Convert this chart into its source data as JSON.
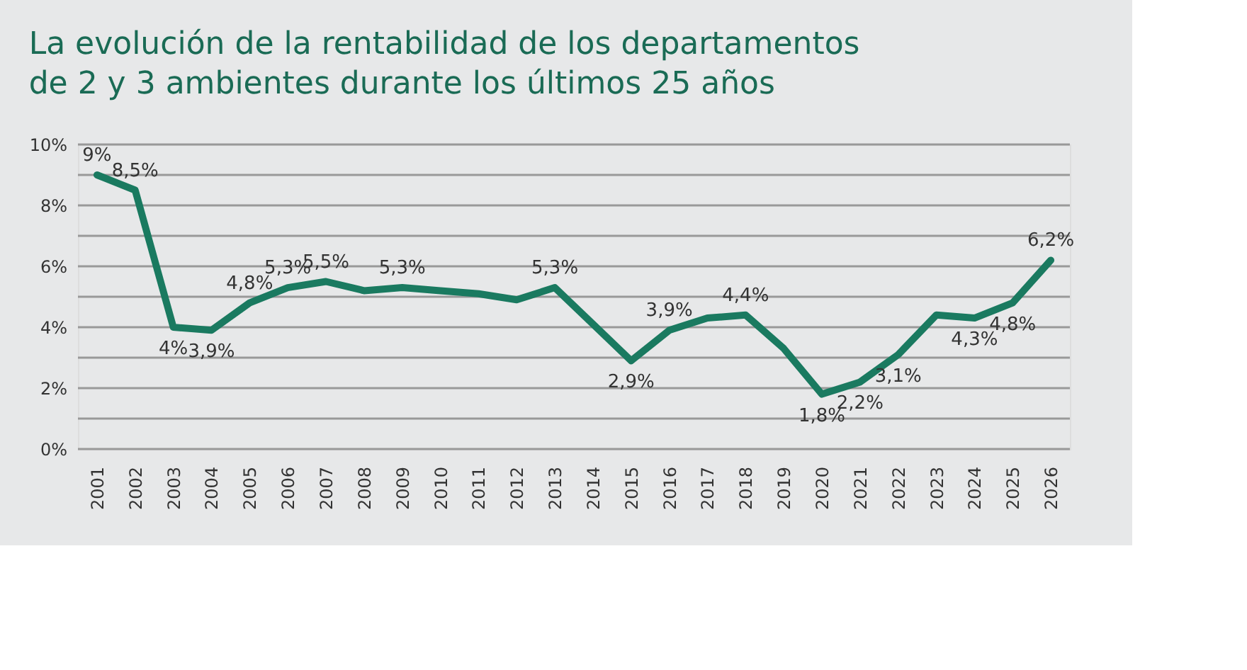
{
  "chart_data": {
    "type": "line",
    "title": "La evolución de la rentabilidad de los departamentos de 2 y 3 ambientes durante los últimos 25 años",
    "categories": [
      "2001",
      "2002",
      "2003",
      "2004",
      "2005",
      "2006",
      "2007",
      "2008",
      "2009",
      "2010",
      "2011",
      "2012",
      "2013",
      "2014",
      "2015",
      "2016",
      "2017",
      "2018",
      "2019",
      "2020",
      "2021",
      "2022",
      "2023",
      "2024",
      "2025",
      "2026"
    ],
    "series": [
      {
        "color": "#1a7a60",
        "values": [
          9,
          8.5,
          4,
          3.9,
          4.8,
          5.3,
          5.5,
          5.2,
          5.3,
          5.2,
          5.1,
          4.9,
          5.3,
          4.1,
          2.9,
          3.9,
          4.3,
          4.4,
          3.3,
          1.8,
          2.2,
          3.1,
          4.4,
          4.3,
          4.8,
          6.2
        ],
        "value_labels": [
          "9%",
          "8,5%",
          "4%",
          "3,9%",
          "4,8%",
          "5,3%",
          "5,5%",
          null,
          "5,3%",
          null,
          null,
          null,
          "5,3%",
          null,
          "2,9%",
          "3,9%",
          null,
          "4,4%",
          null,
          "1,8%",
          "2,2%",
          "3,1%",
          null,
          "4,3%",
          "4,8%",
          "6,2%"
        ]
      }
    ],
    "ylim": [
      0,
      10
    ],
    "yticks": [
      {
        "value": 0,
        "label": "0%"
      },
      {
        "value": 1,
        "label": null
      },
      {
        "value": 2,
        "label": "2%"
      },
      {
        "value": 3,
        "label": null
      },
      {
        "value": 4,
        "label": "4%"
      },
      {
        "value": 5,
        "label": null
      },
      {
        "value": 6,
        "label": "6%"
      },
      {
        "value": 7,
        "label": null
      },
      {
        "value": 8,
        "label": "8%"
      },
      {
        "value": 9,
        "label": null
      },
      {
        "value": 10,
        "label": "10%"
      }
    ],
    "grid": "y",
    "legend": false,
    "marker": "none",
    "line_style": "solid"
  }
}
